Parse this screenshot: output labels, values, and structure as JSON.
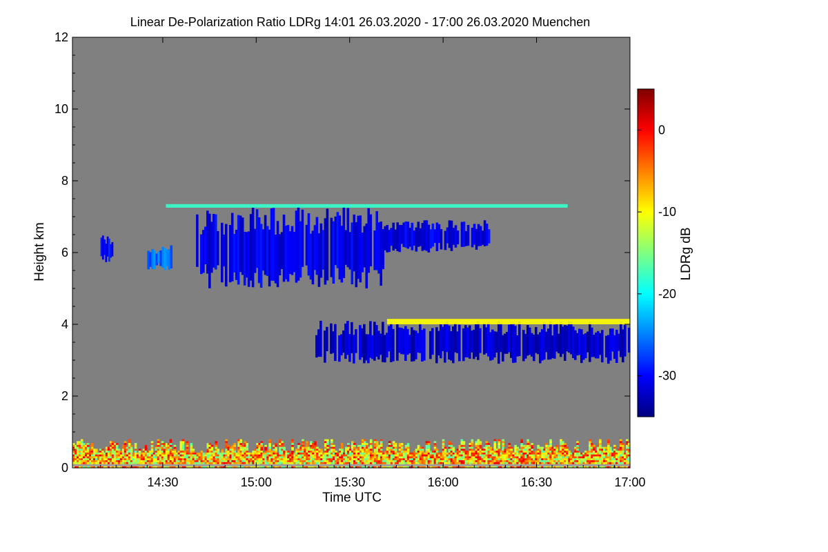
{
  "chart_data": {
    "type": "heatmap",
    "title": "Linear De-Polarization Ratio LDRg   14:01 26.03.2020 - 17:00 26.03.2020 Muenchen",
    "xlabel": "Time UTC",
    "ylabel": "Height km",
    "x_range_minutes_utc": [
      841,
      1020
    ],
    "x_ticks": [
      {
        "label": "14:30",
        "minutes": 870
      },
      {
        "label": "15:00",
        "minutes": 900
      },
      {
        "label": "15:30",
        "minutes": 930
      },
      {
        "label": "16:00",
        "minutes": 960
      },
      {
        "label": "16:30",
        "minutes": 990
      },
      {
        "label": "17:00",
        "minutes": 1020
      }
    ],
    "ylim": [
      0,
      12
    ],
    "y_ticks": [
      0,
      2,
      4,
      6,
      8,
      10,
      12
    ],
    "no_data_color": "#808080",
    "colorbar": {
      "label": "LDRg dB",
      "range": [
        -35,
        5
      ],
      "ticks": [
        0,
        -10,
        -20,
        -30
      ],
      "colormap": "jet"
    },
    "features": [
      {
        "name": "near-surface layer",
        "t0": 841,
        "t1": 1020,
        "h0": 0.0,
        "h1": 0.85,
        "ldr_db": -8
      },
      {
        "name": "cirrus cloud 14:08",
        "t0": 850,
        "t1": 854,
        "h0": 5.7,
        "h1": 6.5,
        "ldr_db": -30
      },
      {
        "name": "cirrus cloud 14:22",
        "t0": 865,
        "t1": 873,
        "h0": 5.5,
        "h1": 6.2,
        "ldr_db": -26
      },
      {
        "name": "main cirrus deck",
        "t0": 880,
        "t1": 941,
        "h0": 5.0,
        "h1": 7.3,
        "ldr_db": -31
      },
      {
        "name": "cirrus fragments",
        "t0": 941,
        "t1": 975,
        "h0": 6.0,
        "h1": 6.9,
        "ldr_db": -31
      },
      {
        "name": "thin aerosol line",
        "t0": 871,
        "t1": 1000,
        "h0": 7.25,
        "h1": 7.35,
        "ldr_db": -18
      },
      {
        "name": "mid-level cloud",
        "t0": 919,
        "t1": 1020,
        "h0": 2.9,
        "h1": 4.1,
        "ldr_db": -32
      },
      {
        "name": "mid-level cloud top",
        "t0": 942,
        "t1": 1020,
        "h0": 4.0,
        "h1": 4.15,
        "ldr_db": -10
      }
    ]
  }
}
